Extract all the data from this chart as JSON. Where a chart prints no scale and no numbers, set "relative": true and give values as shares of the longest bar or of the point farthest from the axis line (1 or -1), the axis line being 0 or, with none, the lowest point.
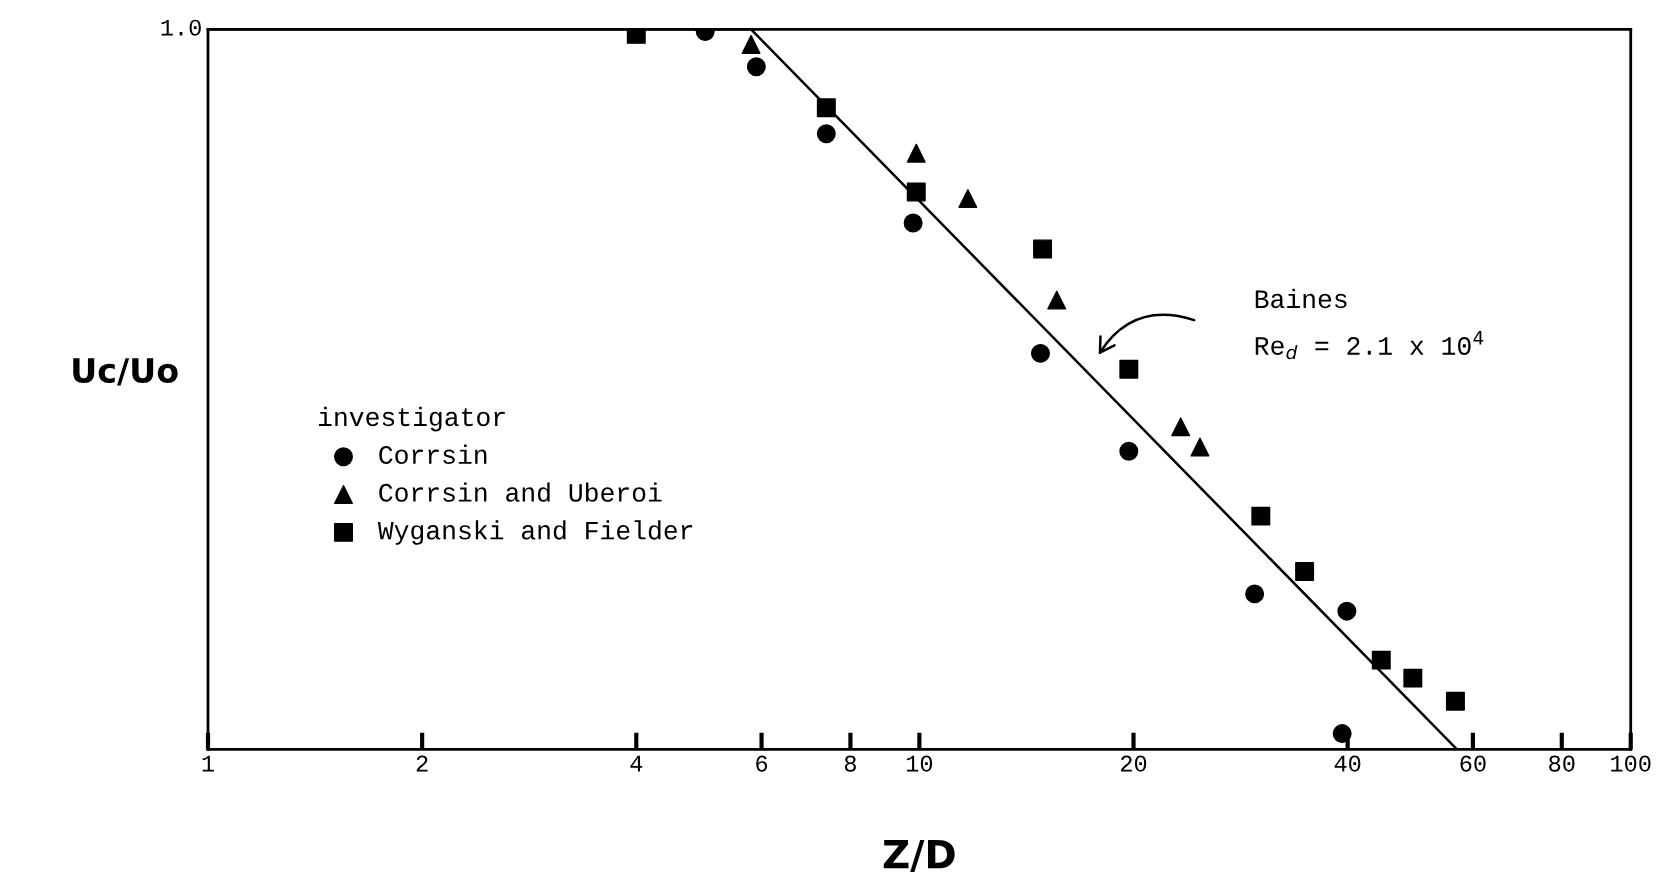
{
  "chart_data": {
    "type": "scatter",
    "xlabel": "Z/D",
    "ylabel": "Uc/Uo",
    "log": "x",
    "legend": "left",
    "legend_title": "investigator",
    "grid": false,
    "relative": true,
    "xlim": [
      1,
      100
    ],
    "xticks": [
      1,
      2,
      4,
      6,
      8,
      10,
      20,
      40,
      60,
      80,
      100
    ],
    "series": [
      {
        "name": "Corrsin",
        "color": "#000000",
        "marker": "circle",
        "x": [
          5.0,
          5.9,
          7.4,
          9.8,
          14.8,
          19.7,
          29.6,
          39.9,
          39.3
        ],
        "values": [
          0.997,
          0.948,
          0.855,
          0.731,
          0.55,
          0.414,
          0.216,
          0.192,
          0.022
        ]
      },
      {
        "name": "Corrsin and Uberoi",
        "color": "#000000",
        "marker": "triangle",
        "x": [
          5.8,
          9.9,
          11.7,
          15.6,
          23.3,
          24.8
        ],
        "values": [
          0.979,
          0.828,
          0.765,
          0.624,
          0.448,
          0.42
        ]
      },
      {
        "name": "Wyganski and Fielder",
        "color": "#000000",
        "marker": "square",
        "x": [
          4.0,
          7.4,
          9.9,
          14.9,
          19.7,
          30.2,
          34.8,
          44.6,
          49.4,
          56.7
        ],
        "values": [
          0.993,
          0.891,
          0.774,
          0.695,
          0.528,
          0.324,
          0.247,
          0.124,
          0.099,
          0.067
        ]
      },
      {
        "type": "line",
        "color": "#000000",
        "marker": "none",
        "line_style": "solid",
        "x": [
          1,
          5.8,
          57
        ],
        "values": [
          1.0,
          1.0,
          0.0
        ]
      }
    ],
    "annotations": [
      "Baines\nRe$_{d}$ = 2.1 x 10$^{4}$",
      "1.0"
    ]
  }
}
